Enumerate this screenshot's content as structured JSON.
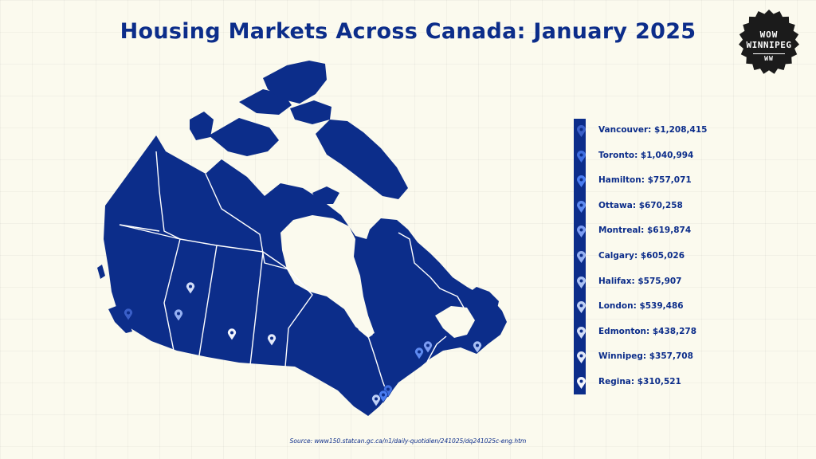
{
  "title": "Housing Markets Across Canada: January 2025",
  "badge": {
    "line1": "WOW",
    "line2": "WINNIPEG",
    "line3": "WW"
  },
  "legend": [
    {
      "city": "Vancouver",
      "label": "Vancouver: $1,208,415",
      "price": 1208415,
      "pin_color": "#3a5fc8"
    },
    {
      "city": "Toronto",
      "label": "Toronto: $1,040,994",
      "price": 1040994,
      "pin_color": "#3f6ee0"
    },
    {
      "city": "Hamilton",
      "label": "Hamilton: $757,071",
      "price": 757071,
      "pin_color": "#4a7cf0"
    },
    {
      "city": "Ottawa",
      "label": "Ottawa: $670,258",
      "price": 670258,
      "pin_color": "#5e8af0"
    },
    {
      "city": "Montreal",
      "label": "Montreal: $619,874",
      "price": 619874,
      "pin_color": "#7c9cf2"
    },
    {
      "city": "Calgary",
      "label": "Calgary: $605,026",
      "price": 605026,
      "pin_color": "#95b0f2"
    },
    {
      "city": "Halifax",
      "label": "Halifax: $575,907",
      "price": 575907,
      "pin_color": "#a9c0f4"
    },
    {
      "city": "London",
      "label": "London: $539,486",
      "price": 539486,
      "pin_color": "#bfd0f6"
    },
    {
      "city": "Edmonton",
      "label": "Edmonton: $438,278",
      "price": 438278,
      "pin_color": "#d2ddf8"
    },
    {
      "city": "Winnipeg",
      "label": "Winnipeg: $357,708",
      "price": 357708,
      "pin_color": "#e3e9fa"
    },
    {
      "city": "Regina",
      "label": "Regina: $310,521",
      "price": 310521,
      "pin_color": "#f4f6fd"
    }
  ],
  "source": "Source: www150.statcan.gc.ca/n1/daily-quotidien/241025/dq241025c-eng.htm",
  "colors": {
    "map_fill": "#0c2d8a",
    "background": "#fbfaee",
    "borders": "#ffffff"
  }
}
